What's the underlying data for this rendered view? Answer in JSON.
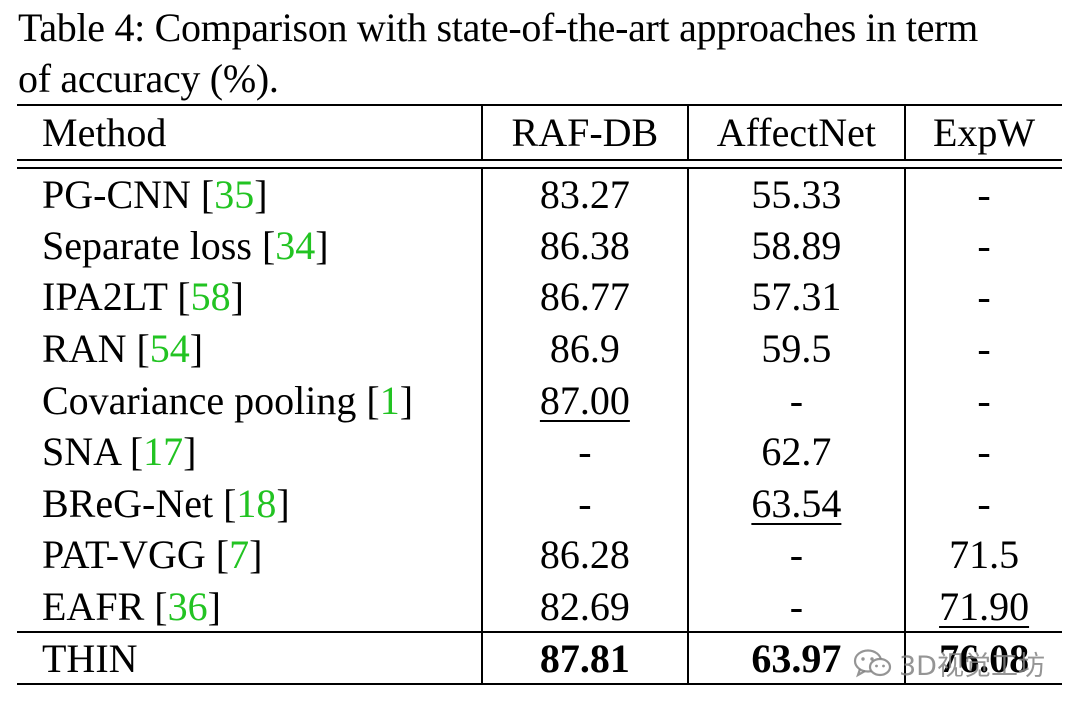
{
  "caption": {
    "line1": "Table 4: Comparison with state-of-the-art approaches in term",
    "line2": "of accuracy (%)."
  },
  "table": {
    "headers": [
      "Method",
      "RAF-DB",
      "AffectNet",
      "ExpW"
    ],
    "rows": [
      {
        "name": "PG-CNN",
        "cite": "35",
        "raf": "83.27",
        "aff": "55.33",
        "exp": "-"
      },
      {
        "name": "Separate loss",
        "cite": "34",
        "raf": "86.38",
        "aff": "58.89",
        "exp": "-"
      },
      {
        "name": "IPA2LT",
        "cite": "58",
        "raf": "86.77",
        "aff": "57.31",
        "exp": "-"
      },
      {
        "name": "RAN",
        "cite": "54",
        "raf": "86.9",
        "aff": "59.5",
        "exp": "-"
      },
      {
        "name": "Covariance pooling",
        "cite": "1",
        "raf": "87.00",
        "aff": "-",
        "exp": "-"
      },
      {
        "name": "SNA",
        "cite": "17",
        "raf": "-",
        "aff": "62.7",
        "exp": "-"
      },
      {
        "name": "BReG-Net",
        "cite": "18",
        "raf": "-",
        "aff": "63.54",
        "exp": "-"
      },
      {
        "name": "PAT-VGG",
        "cite": "7",
        "raf": "86.28",
        "aff": "-",
        "exp": "71.5"
      },
      {
        "name": "EAFR",
        "cite": "36",
        "raf": "82.69",
        "aff": "-",
        "exp": "71.90"
      }
    ],
    "final": {
      "name": "THIN",
      "raf": "87.81",
      "aff": "63.97",
      "exp": "76.08"
    }
  },
  "watermark": {
    "text": "3D视觉工坊",
    "icon": "wechat-icon"
  },
  "colors": {
    "citation": "#22c322"
  }
}
